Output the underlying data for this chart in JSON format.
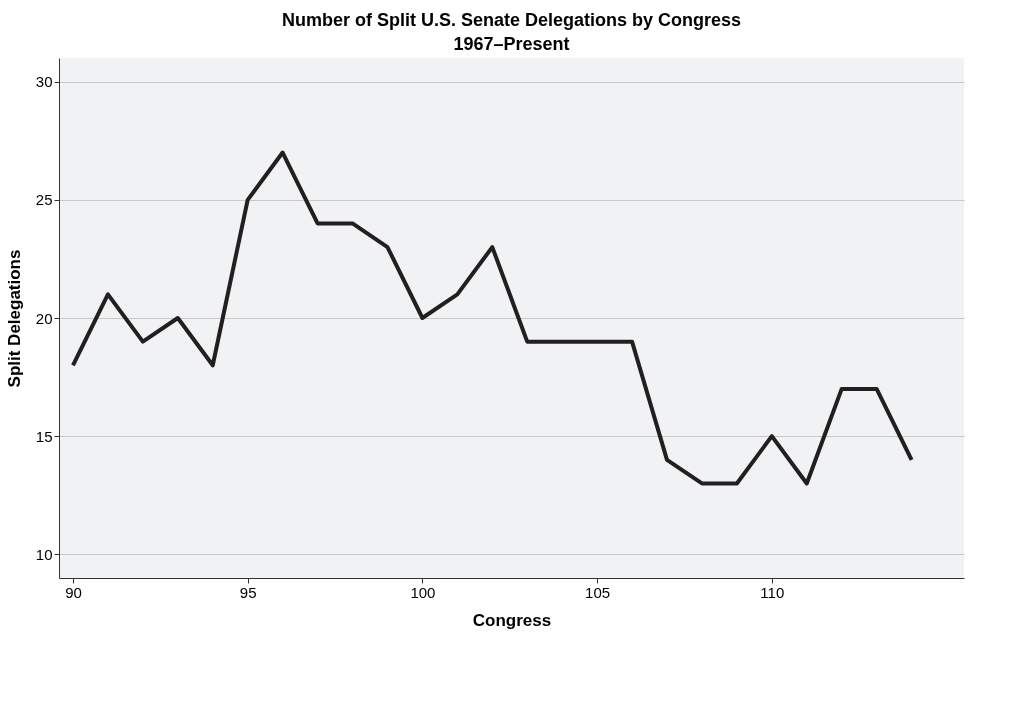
{
  "chart_data": {
    "type": "line",
    "title": "Number of Split U.S. Senate Delegations by Congress",
    "subtitle": "1967–Present",
    "xlabel": "Congress",
    "ylabel": "Split Delegations",
    "x": [
      90,
      91,
      92,
      93,
      94,
      95,
      96,
      97,
      98,
      99,
      100,
      101,
      102,
      103,
      104,
      105,
      106,
      107,
      108,
      109,
      110,
      111,
      112,
      113,
      114
    ],
    "series": [
      {
        "color": "#231f20",
        "values": [
          18,
          21,
          19,
          20,
          18,
          25,
          27,
          24,
          24,
          23,
          20,
          21,
          23,
          19,
          19,
          19,
          19,
          14,
          13,
          13,
          15,
          13,
          17,
          17,
          14
        ]
      }
    ],
    "xlim": [
      89.6,
      115.5
    ],
    "xticks": [
      90,
      95,
      100,
      105,
      110
    ],
    "ylim": [
      9,
      31
    ],
    "yticks": [
      10,
      15,
      20,
      25,
      30
    ],
    "grid": "y",
    "marker": "none",
    "line_style": "solid"
  }
}
